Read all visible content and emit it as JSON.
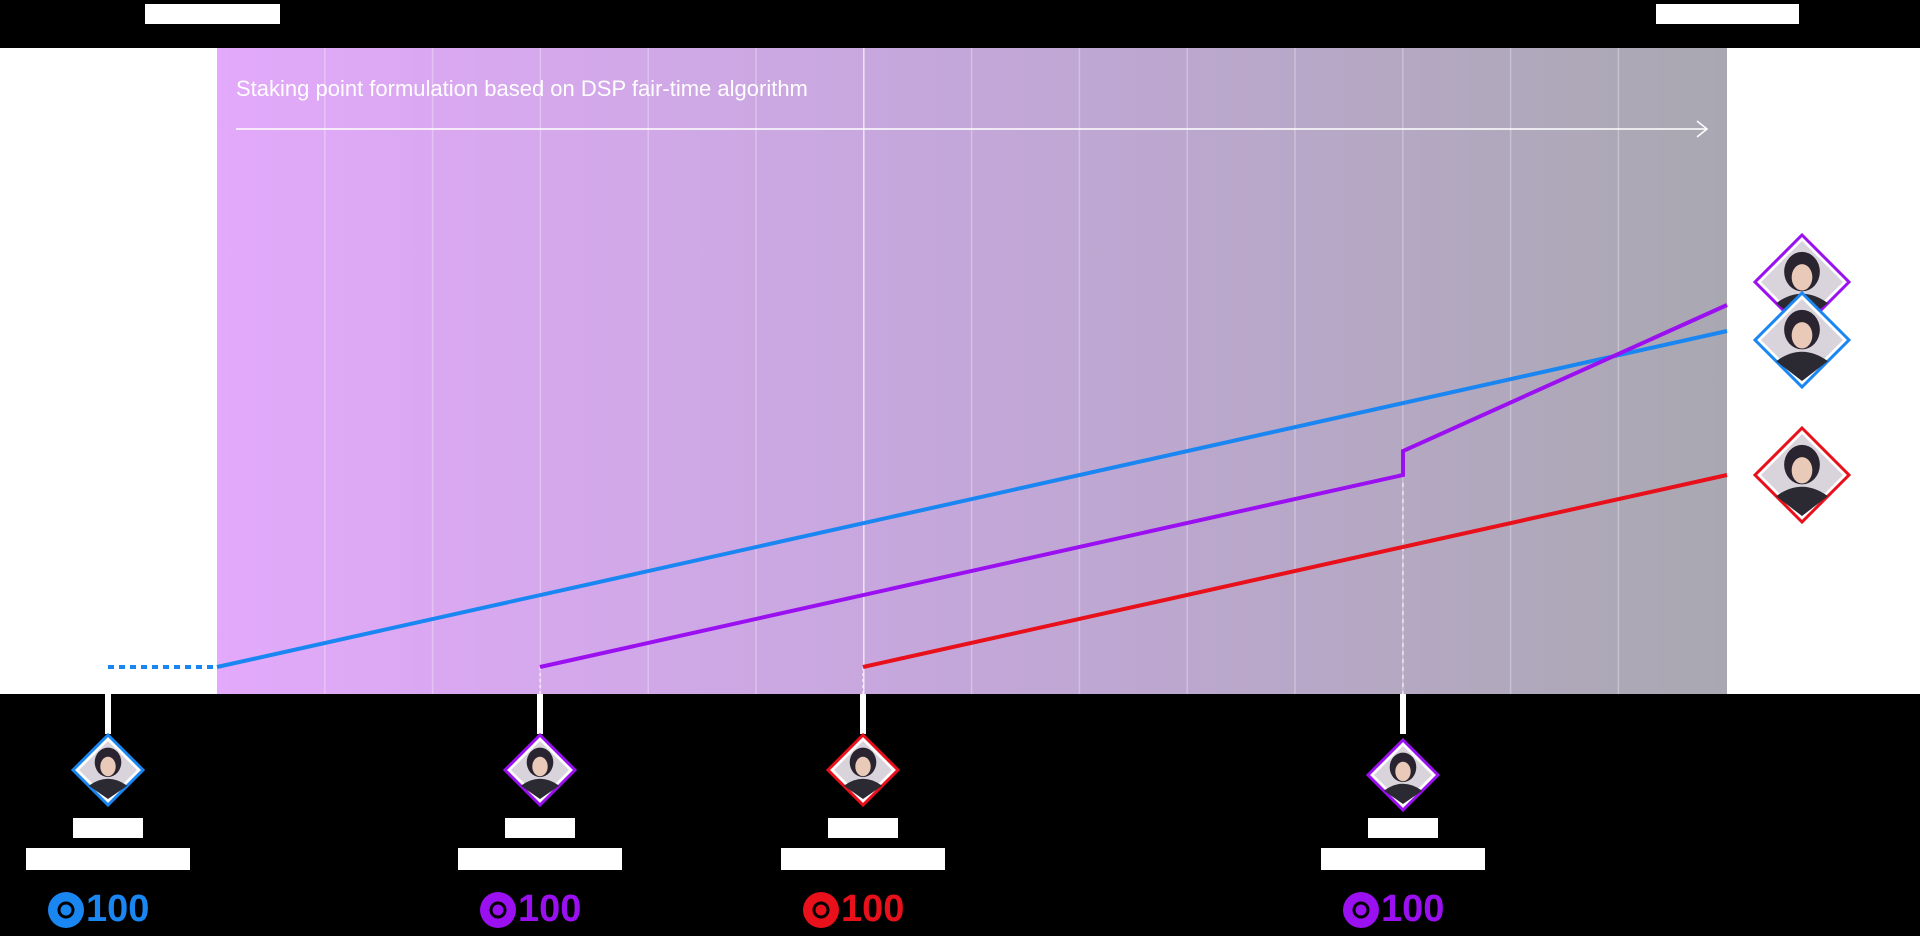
{
  "title": "Staking point formulation based on DSP fair-time algorithm",
  "players": [
    {
      "color": "#1a86f2",
      "amount": 100
    },
    {
      "color": "#9b10f0",
      "amount": 100
    },
    {
      "color": "#e8101a",
      "amount": 100
    },
    {
      "color": "#9b10f0",
      "amount": 100
    }
  ]
}
